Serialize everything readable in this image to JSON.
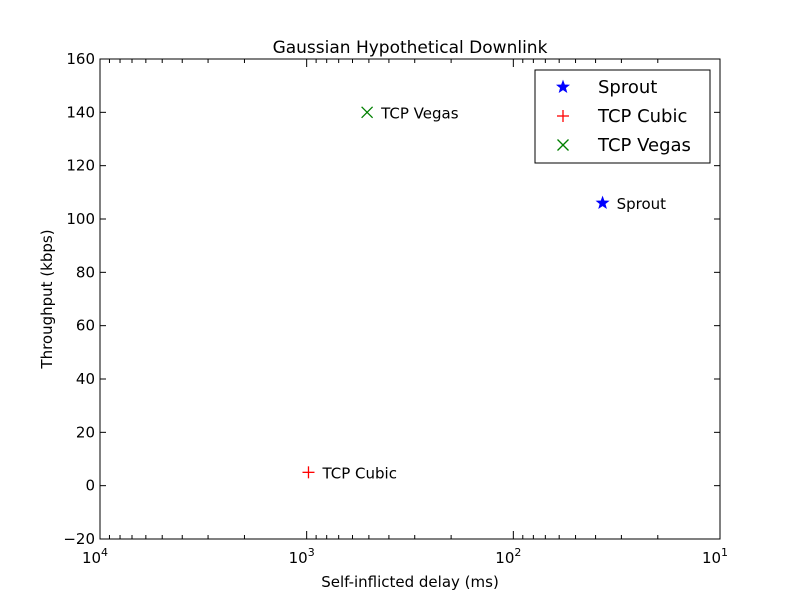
{
  "chart_data": {
    "type": "scatter",
    "title": "Gaussian Hypothetical Downlink",
    "xlabel": "Self-inflicted delay (ms)",
    "ylabel": "Throughput (kbps)",
    "xscale": "log",
    "xaxis_reversed": true,
    "xlim": [
      10000,
      10
    ],
    "ylim": [
      -20,
      160
    ],
    "x_ticks": [
      {
        "value": 10000,
        "base": "10",
        "exp": "4"
      },
      {
        "value": 1000,
        "base": "10",
        "exp": "3"
      },
      {
        "value": 100,
        "base": "10",
        "exp": "2"
      },
      {
        "value": 10,
        "base": "10",
        "exp": "1"
      }
    ],
    "y_ticks": [
      -20,
      0,
      20,
      40,
      60,
      80,
      100,
      120,
      140,
      160
    ],
    "y_tick_labels": [
      "−20",
      "0",
      "20",
      "40",
      "60",
      "80",
      "100",
      "120",
      "140",
      "160"
    ],
    "grid": false,
    "legend_position": "top-right",
    "series": [
      {
        "name": "Sprout",
        "marker": "star",
        "color": "#0000ff",
        "x": 37,
        "y": 106,
        "annotation": "Sprout"
      },
      {
        "name": "TCP Cubic",
        "marker": "plus",
        "color": "#ff0000",
        "x": 980,
        "y": 5,
        "annotation": "TCP Cubic"
      },
      {
        "name": "TCP Vegas",
        "marker": "x",
        "color": "#008000",
        "x": 510,
        "y": 140,
        "annotation": "TCP Vegas"
      }
    ]
  }
}
